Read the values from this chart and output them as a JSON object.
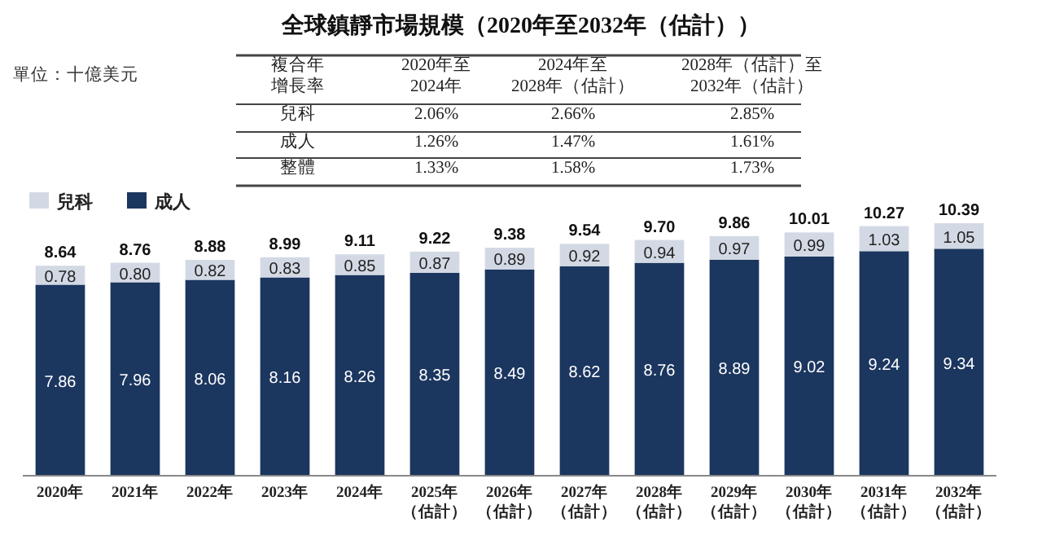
{
  "chart_data": [
    {
      "type": "other",
      "title": "全球鎮靜市場規模（2020年至2032年（估計））",
      "annotations": [
        "複合年增長率",
        "2020年至2024年",
        "2024年至2028年（估計）",
        "2028年（估計）至2032年（估計）",
        "兒科",
        "2.06%",
        "2.66%",
        "2.85%",
        "成人",
        "1.26%",
        "1.47%",
        "1.61%",
        "整體",
        "1.33%",
        "1.58%",
        "1.73%"
      ]
    },
    {
      "type": "bar",
      "stacked": true,
      "legend": "top left",
      "tick_labels": "x",
      "annotations": [
        "單位：十億美元"
      ],
      "categories": [
        "2020年",
        "2021年",
        "2022年",
        "2023年",
        "2024年",
        "2025年（估計）",
        "2026年（估計）",
        "2027年（估計）",
        "2028年（估計）",
        "2029年（估計）",
        "2030年（估計）",
        "2031年（估計）",
        "2032年（估計）"
      ],
      "series": [
        {
          "name": "成人",
          "color": "#1b365f",
          "values": [
            7.86,
            7.96,
            8.06,
            8.16,
            8.26,
            8.35,
            8.49,
            8.62,
            8.76,
            8.89,
            9.02,
            9.24,
            9.34
          ],
          "value_labels": [
            "7.86",
            "7.96",
            "8.06",
            "8.16",
            "8.26",
            "8.35",
            "8.49",
            "8.62",
            "8.76",
            "8.89",
            "9.02",
            "9.24",
            "9.34"
          ]
        },
        {
          "name": "兒科",
          "color": "#d3d9e4",
          "values": [
            0.78,
            0.8,
            0.82,
            0.83,
            0.85,
            0.87,
            0.89,
            0.92,
            0.94,
            0.97,
            0.99,
            1.03,
            1.05
          ],
          "value_labels": [
            "0.78",
            "0.80",
            "0.82",
            "0.83",
            "0.85",
            "0.87",
            "0.89",
            "0.92",
            "0.94",
            "0.97",
            "0.99",
            "1.03",
            "1.05"
          ]
        }
      ],
      "totals": [
        "8.64",
        "8.76",
        "8.88",
        "8.99",
        "9.11",
        "9.22",
        "9.38",
        "9.54",
        "9.70",
        "9.86",
        "10.01",
        "10.27",
        "10.39"
      ]
    }
  ]
}
